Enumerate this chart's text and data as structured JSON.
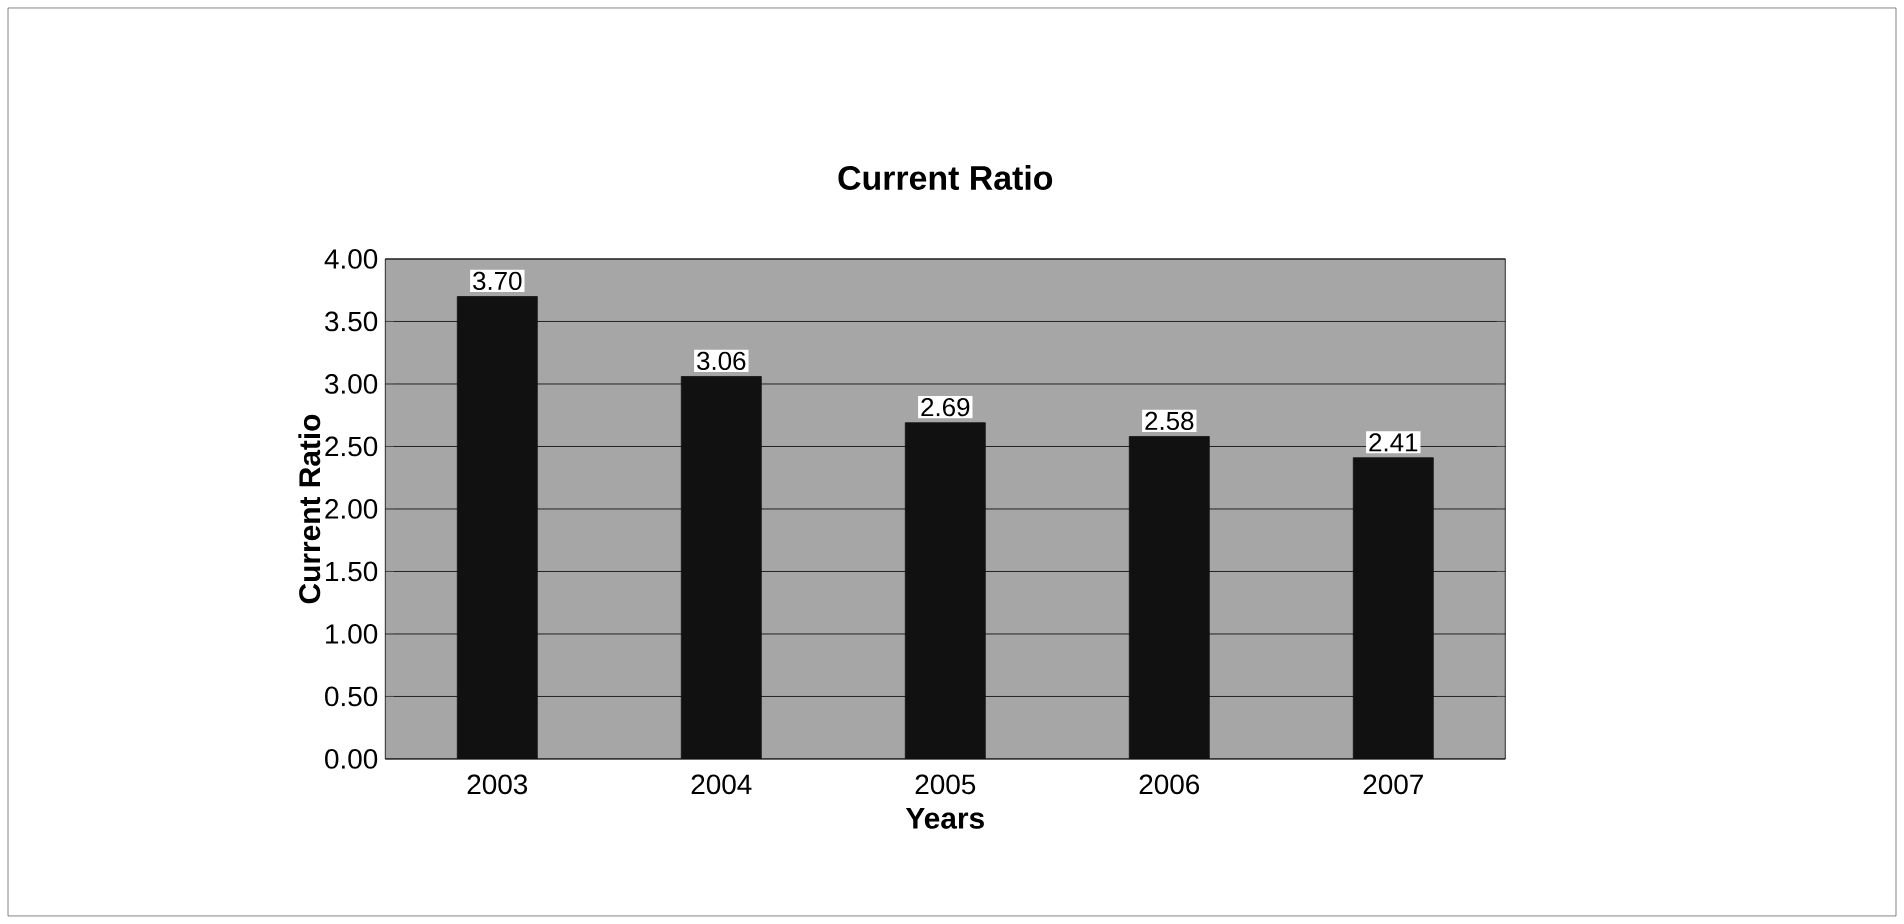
{
  "chart_data": {
    "type": "bar",
    "title": "Current Ratio",
    "xlabel": "Years",
    "ylabel": "Current Ratio",
    "categories": [
      "2003",
      "2004",
      "2005",
      "2006",
      "2007"
    ],
    "values": [
      3.7,
      3.06,
      2.69,
      2.58,
      2.41
    ],
    "value_labels": [
      "3.70",
      "3.06",
      "2.69",
      "2.58",
      "2.41"
    ],
    "color": "#111111",
    "ylim": [
      0,
      4
    ],
    "yticks": [
      {
        "value": 0,
        "label": "0.00"
      },
      {
        "value": 0.5,
        "label": "0.50"
      },
      {
        "value": 1,
        "label": "1.00"
      },
      {
        "value": 1.5,
        "label": "1.50"
      },
      {
        "value": 2,
        "label": "2.00"
      },
      {
        "value": 2.5,
        "label": "2.50"
      },
      {
        "value": 3,
        "label": "3.00"
      },
      {
        "value": 3.5,
        "label": "3.50"
      },
      {
        "value": 4,
        "label": "4.00"
      }
    ],
    "grid": "y"
  }
}
